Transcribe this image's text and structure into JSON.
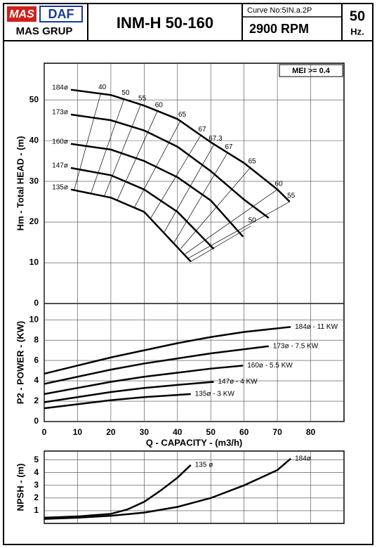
{
  "header": {
    "logo_left": "MAS",
    "logo_right": "DAF",
    "company": "MAS GRUP",
    "model": "INM-H 50-160",
    "curve_no": "Curve No:5IN.a.2P",
    "speed": "2900 RPM",
    "frequency": "50",
    "frequency_unit": "Hz."
  },
  "chart_data": [
    {
      "type": "line",
      "y_label": "Hm - Total HEAD - (m)",
      "annotation": "MEI >= 0.4",
      "xlim": [
        0,
        90
      ],
      "ylim": [
        0,
        59
      ],
      "yticks": [
        0,
        10,
        20,
        30,
        40,
        50
      ],
      "grid": true,
      "series": [
        {
          "name": "184ø",
          "color": "#000000",
          "x": [
            8,
            20,
            30,
            40,
            50,
            60,
            70,
            73.7
          ],
          "values": [
            52.5,
            51.2,
            48.6,
            45.3,
            39.6,
            34.5,
            28,
            25
          ]
        },
        {
          "name": "173ø",
          "color": "#000000",
          "x": [
            8,
            20,
            30,
            40,
            50,
            60,
            67.4
          ],
          "values": [
            46.4,
            45,
            42.5,
            38.5,
            32.5,
            25.5,
            21
          ]
        },
        {
          "name": "160ø",
          "color": "#000000",
          "x": [
            8,
            20,
            30,
            40,
            50,
            59.7
          ],
          "values": [
            39.2,
            37.8,
            35,
            31,
            25.3,
            16.4
          ]
        },
        {
          "name": "147ø",
          "color": "#000000",
          "x": [
            8,
            20,
            30,
            40,
            50.9
          ],
          "values": [
            33.3,
            31.5,
            28,
            22.5,
            13.4
          ]
        },
        {
          "name": "135ø",
          "color": "#000000",
          "x": [
            8,
            20,
            30,
            44
          ],
          "values": [
            28,
            26,
            22.5,
            10.3
          ]
        }
      ],
      "efficiency_lines": [
        {
          "label": "40",
          "x": [
            17,
            9
          ],
          "values": [
            51.7,
            27.9
          ]
        },
        {
          "label": "50",
          "x": [
            24,
            14
          ],
          "values": [
            50.3,
            27
          ]
        },
        {
          "label": "55",
          "x": [
            29,
            18
          ],
          "values": [
            48.9,
            26.3
          ]
        },
        {
          "label": "60",
          "x": [
            34,
            22
          ],
          "values": [
            47.3,
            25.5
          ]
        },
        {
          "label": "65",
          "x": [
            41,
            27
          ],
          "values": [
            45,
            23.5
          ]
        },
        {
          "label": "67",
          "x": [
            47,
            32
          ],
          "values": [
            41.3,
            21
          ]
        },
        {
          "label": "67.3",
          "x": [
            51,
            36
          ],
          "values": [
            39.1,
            17.5
          ]
        },
        {
          "label": "67",
          "x": [
            55,
            39
          ],
          "values": [
            37,
            15
          ]
        },
        {
          "label": "65",
          "x": [
            62,
            41
          ],
          "values": [
            33.5,
            13.5
          ]
        },
        {
          "label": "60",
          "x": [
            70,
            42
          ],
          "values": [
            28,
            12
          ]
        },
        {
          "label": "55",
          "x": [
            73.7,
            43
          ],
          "values": [
            25,
            11
          ]
        },
        {
          "label": "50",
          "x": [
            62,
            44
          ],
          "values": [
            19,
            10.3
          ]
        }
      ]
    },
    {
      "type": "line",
      "y_label": "P2 - POWER - (KW)",
      "x_label": "Q - CAPACITY - (m3/h)",
      "xlim": [
        0,
        90
      ],
      "xticks": [
        0,
        10,
        20,
        30,
        40,
        50,
        60,
        70,
        80
      ],
      "ylim": [
        0,
        11.6
      ],
      "yticks": [
        0,
        2,
        4,
        6,
        8,
        10
      ],
      "grid": true,
      "series": [
        {
          "name": "184ø - 11 KW",
          "color": "#000000",
          "x": [
            0,
            10,
            20,
            30,
            40,
            50,
            60,
            74
          ],
          "values": [
            4.7,
            5.5,
            6.3,
            7,
            7.7,
            8.3,
            8.8,
            9.3
          ]
        },
        {
          "name": "173ø - 7.5 KW",
          "color": "#000000",
          "x": [
            0,
            10,
            20,
            30,
            40,
            50,
            60,
            67.4
          ],
          "values": [
            3.7,
            4.4,
            5.1,
            5.7,
            6.2,
            6.7,
            7.1,
            7.4
          ]
        },
        {
          "name": "160ø - 5.5 KW",
          "color": "#000000",
          "x": [
            0,
            10,
            20,
            30,
            40,
            50,
            59.7
          ],
          "values": [
            2.7,
            3.3,
            3.9,
            4.4,
            4.8,
            5.2,
            5.5
          ]
        },
        {
          "name": "147ø - 4 KW",
          "color": "#000000",
          "x": [
            0,
            10,
            20,
            30,
            40,
            50.9
          ],
          "values": [
            1.9,
            2.4,
            2.9,
            3.3,
            3.6,
            3.9
          ]
        },
        {
          "name": "135ø - 3 KW",
          "color": "#000000",
          "x": [
            0,
            10,
            20,
            30,
            44
          ],
          "values": [
            1.3,
            1.7,
            2.1,
            2.4,
            2.7
          ]
        }
      ]
    },
    {
      "type": "line",
      "y_label": "NPSH - (m)",
      "xlim": [
        0,
        90
      ],
      "ylim": [
        0,
        5.7
      ],
      "yticks": [
        1,
        2,
        3,
        4,
        5
      ],
      "grid": true,
      "series": [
        {
          "name": "135 ø",
          "color": "#000000",
          "x": [
            0,
            10,
            20,
            25,
            30,
            35,
            40,
            44
          ],
          "values": [
            0.45,
            0.55,
            0.75,
            1.1,
            1.7,
            2.6,
            3.6,
            4.6
          ]
        },
        {
          "name": "184ø",
          "color": "#000000",
          "x": [
            0,
            10,
            20,
            30,
            40,
            50,
            60,
            70,
            74
          ],
          "values": [
            0.35,
            0.45,
            0.6,
            0.85,
            1.3,
            2,
            3,
            4.2,
            5.1
          ]
        }
      ]
    }
  ]
}
